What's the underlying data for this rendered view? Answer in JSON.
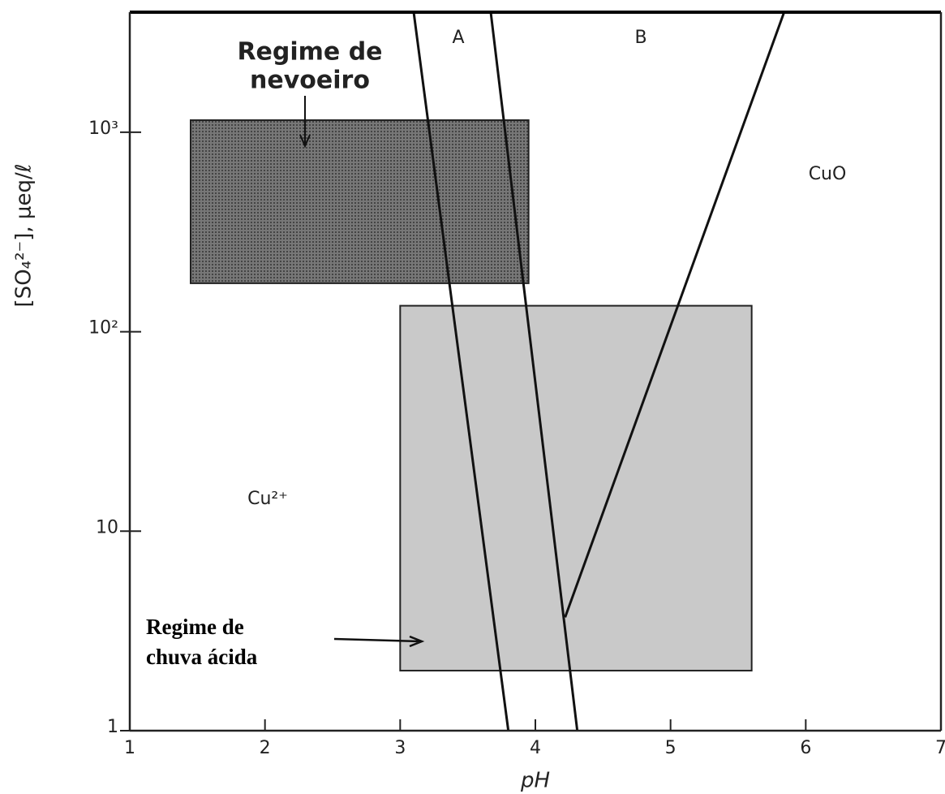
{
  "chart_data": {
    "type": "phase-diagram",
    "xlabel": "pH",
    "ylabel": "[SO₄²⁻], μeq/ℓ",
    "xlim": [
      1,
      7
    ],
    "ylim": [
      1,
      4000
    ],
    "log_y": true,
    "xticks": [
      1,
      2,
      3,
      4,
      5,
      6,
      7
    ],
    "yticks": [
      1,
      10,
      {
        "value": 100,
        "label": "10²"
      },
      {
        "value": 1000,
        "label": "10³"
      }
    ],
    "regions": [
      {
        "label": [
          "Regime de",
          "nevoeiro"
        ],
        "color": "#5a5a5a",
        "x": [
          1.45,
          3.95
        ],
        "y": [
          175,
          1150
        ]
      },
      {
        "label": [
          "Regime de",
          "chuva ácida"
        ],
        "color": "#c9c9c9",
        "x": [
          3.0,
          5.6
        ],
        "y": [
          2,
          135
        ]
      }
    ],
    "lines": [
      {
        "name": "A",
        "x": [
          3.1,
          3.8
        ],
        "y": [
          4000,
          1
        ]
      },
      {
        "name": "B",
        "x": [
          3.67,
          4.31
        ],
        "y": [
          4000,
          1
        ]
      },
      {
        "x": [
          4.22,
          5.84
        ],
        "y": [
          3.7,
          4000
        ]
      }
    ],
    "fields": [
      "Cu²⁺",
      "CuO"
    ]
  }
}
